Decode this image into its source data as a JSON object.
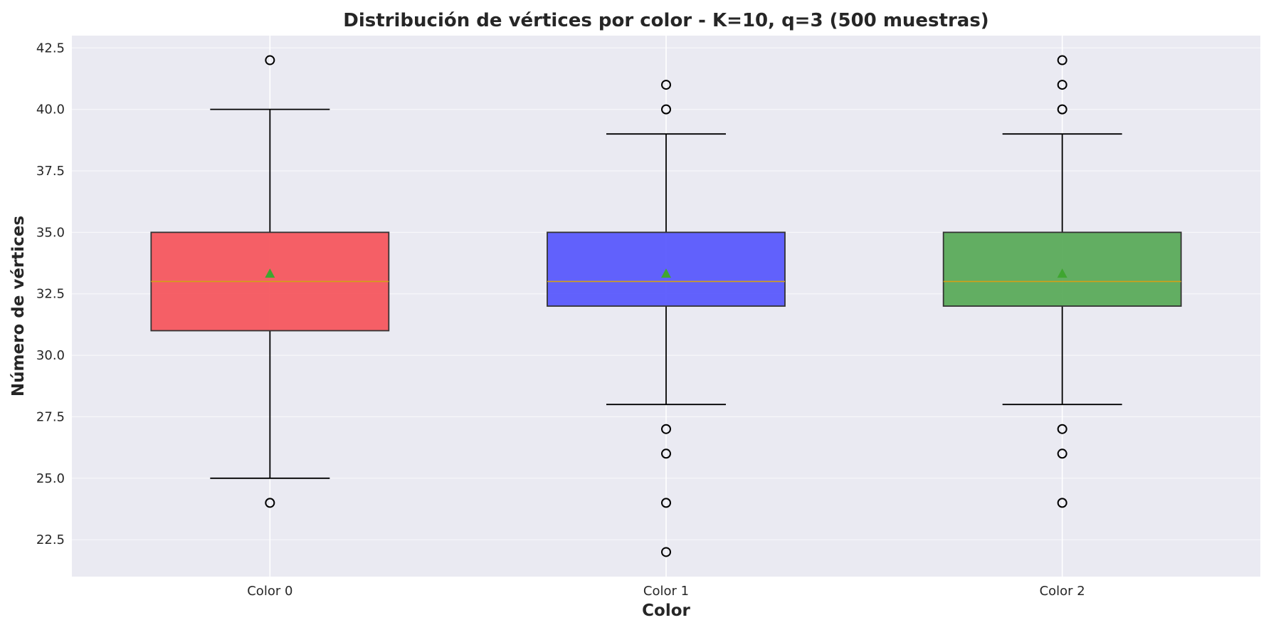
{
  "chart_data": {
    "type": "box",
    "title": "Distribución de vértices por color - K=10, q=3 (500 muestras)",
    "xlabel": "Color",
    "ylabel": "Número de vértices",
    "categories": [
      "Color 0",
      "Color 1",
      "Color 2"
    ],
    "ylim": [
      21.0,
      43.0
    ],
    "yticks": [
      22.5,
      25.0,
      27.5,
      30.0,
      32.5,
      35.0,
      37.5,
      40.0,
      42.5
    ],
    "ytick_labels": [
      "22.5",
      "25.0",
      "27.5",
      "30.0",
      "32.5",
      "35.0",
      "37.5",
      "40.0",
      "42.5"
    ],
    "grid": true,
    "colors": {
      "background": "#eaeaf2",
      "grid": "#ffffff",
      "median": "#d4a017",
      "mean_marker": "#3fa630",
      "whisker": "#000000",
      "box_edge": "#333333"
    },
    "series": [
      {
        "category": "Color 0",
        "color": "#f5535a",
        "whisker_low": 25.0,
        "q1": 31.0,
        "median": 33.0,
        "q3": 35.0,
        "whisker_high": 40.0,
        "mean": 33.3,
        "outliers": [
          24.0,
          42.0
        ]
      },
      {
        "category": "Color 1",
        "color": "#5555fd",
        "whisker_low": 28.0,
        "q1": 32.0,
        "median": 33.0,
        "q3": 35.0,
        "whisker_high": 39.0,
        "mean": 33.3,
        "outliers": [
          22.0,
          24.0,
          26.0,
          27.0,
          40.0,
          41.0
        ]
      },
      {
        "category": "Color 2",
        "color": "#56a856",
        "whisker_low": 28.0,
        "q1": 32.0,
        "median": 33.0,
        "q3": 35.0,
        "whisker_high": 39.0,
        "mean": 33.3,
        "outliers": [
          24.0,
          26.0,
          27.0,
          40.0,
          41.0,
          42.0
        ]
      }
    ]
  }
}
